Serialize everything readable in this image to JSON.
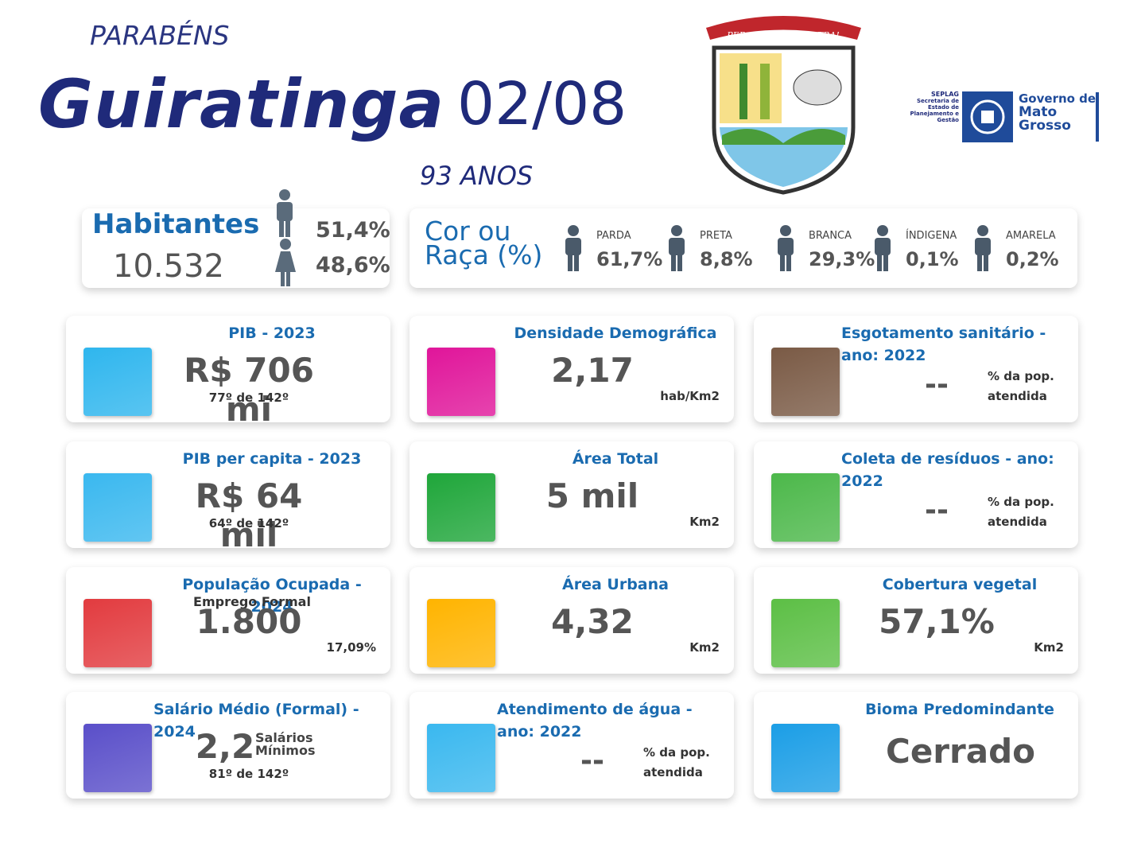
{
  "header": {
    "greeting": "PARABÉNS",
    "city": "Guiratinga",
    "date": "02/08",
    "age": "93 ANOS"
  },
  "crest": {
    "motto": "PER ASPERA AD ASTRA!"
  },
  "government_logo": {
    "seplag": "SEPLAG",
    "seplag_name": "Secretaria de Estado de Planejamento e Gestão",
    "line1": "Governo de",
    "line2": "Mato",
    "line3": "Grosso"
  },
  "population": {
    "label": "Habitantes",
    "value": "10.532",
    "male": "51,4%",
    "female": "48,6%"
  },
  "race": {
    "title_line1": "Cor ou",
    "title_line2": "Raça (%)",
    "groups": [
      {
        "label": "PARDA",
        "value": "61,7%"
      },
      {
        "label": "PRETA",
        "value": "8,8%"
      },
      {
        "label": "BRANCA",
        "value": "29,3%"
      },
      {
        "label": "ÍNDIGENA",
        "value": "0,1%"
      },
      {
        "label": "AMARELA",
        "value": "0,2%"
      }
    ]
  },
  "cards": [
    {
      "title": "PIB - 2023",
      "value": "R$ 706 mi",
      "rank": "77º de 142º",
      "icon_color": "#2fb6ee"
    },
    {
      "title": "Densidade Demográfica",
      "value": "2,17",
      "note": "hab/Km2",
      "icon_color": "#e0159a"
    },
    {
      "title": "Esgotamento sanitário - ano: 2022",
      "value": "--",
      "note": "% da pop. atendida",
      "icon_color": "#7a5a45"
    },
    {
      "title": "PIB per capita - 2023",
      "value": "R$ 64 mil",
      "rank": "64º de 142º",
      "icon_color": "#3ab8ef"
    },
    {
      "title": "Área Total",
      "value": "5 mil",
      "note": "Km2",
      "icon_color": "#1fa63a"
    },
    {
      "title": "Coleta de resíduos - ano: 2022",
      "value": "--",
      "note": "% da pop. atendida",
      "icon_color": "#4cb84a"
    },
    {
      "title": "População Ocupada - 2024",
      "subtitle": "Emprego Formal",
      "value": "1.800",
      "note": "17,09%",
      "icon_color": "#e23b3f"
    },
    {
      "title": "Área Urbana",
      "value": "4,32",
      "note": "Km2",
      "icon_color": "#ffb400"
    },
    {
      "title": "Cobertura vegetal",
      "value": "57,1%",
      "note": "Km2",
      "icon_color": "#5cbf45"
    },
    {
      "title": "Salário Médio (Formal) - 2024",
      "value": "2,2",
      "unit": "Salários Mínimos",
      "rank": "81º de 142º",
      "icon_color": "#5a4fc9"
    },
    {
      "title": "Atendimento de água - ano: 2022",
      "value": "--",
      "note": "% da pop. atendida",
      "icon_color": "#3ab8ef"
    },
    {
      "title": "Bioma Predomindante",
      "value": "Cerrado",
      "icon_color": "#1b9ee6"
    }
  ]
}
